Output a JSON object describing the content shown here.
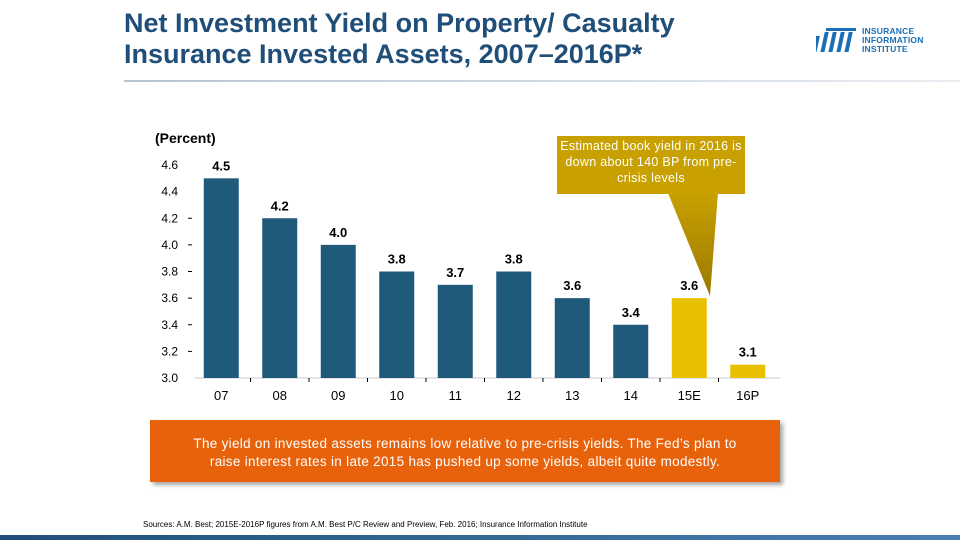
{
  "header": {
    "title_line1": "Net Investment Yield on Property/ Casualty",
    "title_line2": "Insurance Invested Assets, 2007–2016P*"
  },
  "logo": {
    "line1": "INSURANCE",
    "line2": "INFORMATION",
    "line3": "INSTITUTE"
  },
  "callout": {
    "text": "Estimated book yield in 2016 is down about 140 BP from pre-crisis levels"
  },
  "note": {
    "line1": "The yield on invested assets remains low relative to pre-crisis yields.  The Fed’s plan to",
    "line2": "raise interest rates in late 2015 has pushed up some yields, albeit quite modestly."
  },
  "sources": "Sources: A.M. Best; 2015E-2016P figures from A.M. Best P/C Review and Preview, Feb. 2016; Insurance Information Institute",
  "colors": {
    "actual": "#1f5a7a",
    "estimate": "#e8c000",
    "title": "#1f4e79",
    "callout": "#c8a000",
    "note": "#e8620c"
  },
  "chart_data": {
    "type": "bar",
    "title": "Net Investment Yield on Property/ Casualty Insurance Invested Assets, 2007–2016P*",
    "ylabel": "(Percent)",
    "xlabel": "",
    "categories": [
      "07",
      "08",
      "09",
      "10",
      "11",
      "12",
      "13",
      "14",
      "15E",
      "16P"
    ],
    "values": [
      4.5,
      4.2,
      4.0,
      3.8,
      3.7,
      3.8,
      3.6,
      3.4,
      3.6,
      3.1
    ],
    "value_labels": [
      "4.5",
      "4.2",
      "4.0",
      "3.8",
      "3.7",
      "3.8",
      "3.6",
      "3.4",
      "3.6",
      "3.1"
    ],
    "estimated": [
      false,
      false,
      false,
      false,
      false,
      false,
      false,
      false,
      true,
      true
    ],
    "ylim": [
      3.0,
      4.6
    ],
    "yticks": [
      "3.0",
      "3.2",
      "3.4",
      "3.6",
      "3.8",
      "4.0",
      "4.2",
      "4.4",
      "4.6"
    ],
    "ytick_values": [
      3.0,
      3.2,
      3.4,
      3.6,
      3.8,
      4.0,
      4.2,
      4.4,
      4.6
    ],
    "grid": false
  }
}
